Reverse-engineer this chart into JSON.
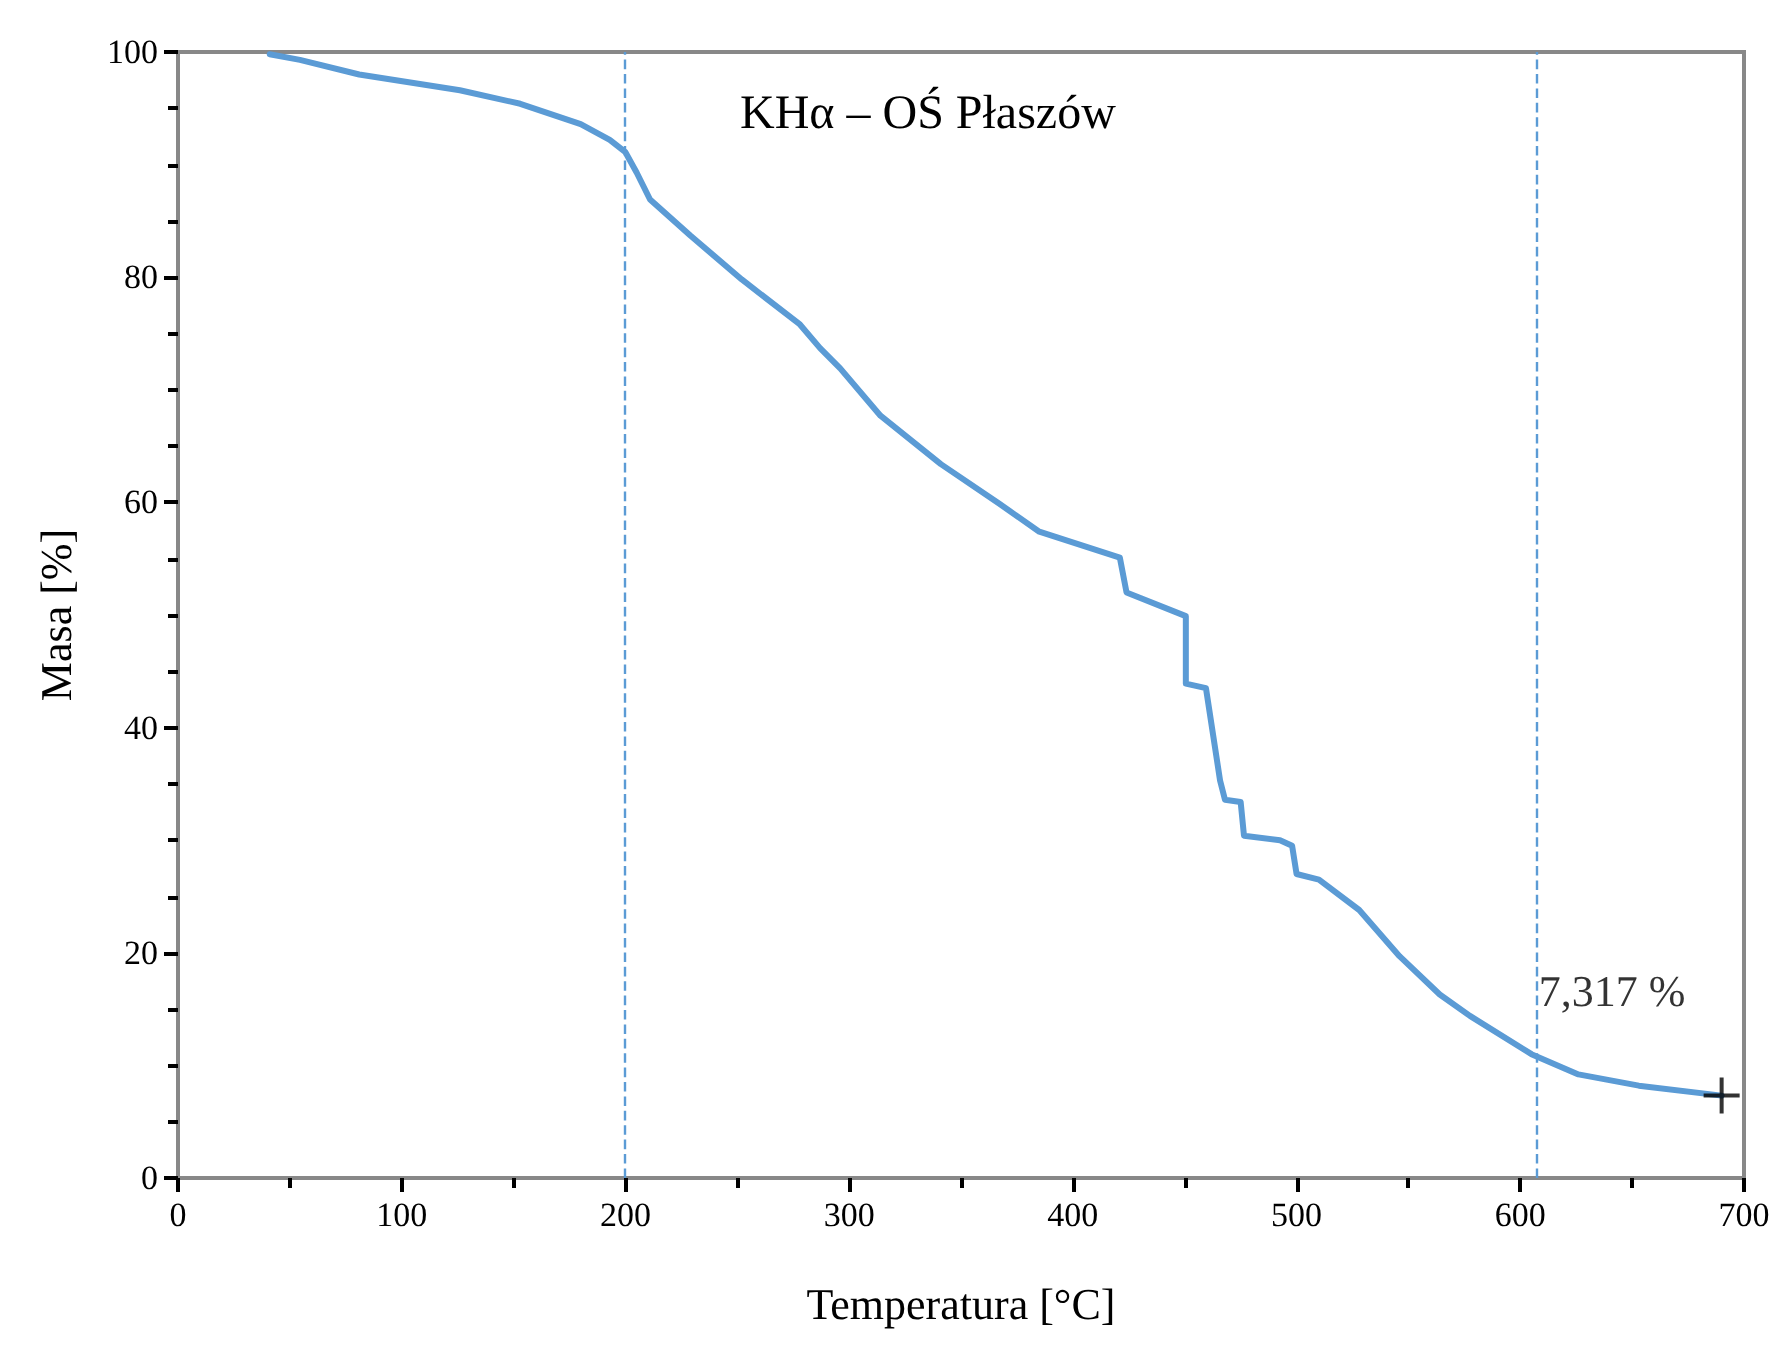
{
  "chart_data": {
    "type": "line",
    "title": "KHα – OŚ Płaszów",
    "xlabel": "Temperatura [°C]",
    "ylabel": "Masa [%]",
    "xlim": [
      0,
      700
    ],
    "xticks": [
      0,
      100,
      200,
      300,
      400,
      500,
      600,
      700
    ],
    "ylim": [
      0,
      100
    ],
    "yticks": [
      0,
      20,
      40,
      60,
      80,
      100
    ],
    "marker": "none",
    "line_style": "solid",
    "series": [
      {
        "color": "#5b9bd5",
        "x": [
          41,
          54.5,
          81,
          126,
          153,
          180,
          193,
          200,
          205,
          211,
          229,
          252,
          278,
          287,
          296,
          314,
          341,
          367,
          385,
          421,
          424,
          450.5,
          450.5,
          459.5,
          465.8,
          468,
          475,
          476.5,
          492.6,
          498,
          500,
          510,
          528,
          546,
          564,
          577.5,
          605,
          626,
          653,
          690
        ],
        "values": [
          99.8,
          99.3,
          98,
          96.6,
          95.4,
          93.6,
          92.2,
          91.1,
          89.3,
          86.9,
          83.7,
          79.8,
          75.8,
          73.7,
          71.9,
          67.7,
          63.4,
          59.9,
          57.4,
          55.1,
          52,
          49.9,
          43.9,
          43.5,
          35.3,
          33.6,
          33.4,
          30.4,
          30,
          29.5,
          27,
          26.5,
          23.8,
          19.7,
          16.3,
          14.4,
          11,
          9.2,
          8.2,
          7.317
        ]
      }
    ],
    "ref_lines": [
      {
        "axis": "x",
        "value": 200,
        "color": "#5b9bd5",
        "line_style": "dashed"
      },
      {
        "axis": "x",
        "value": 607,
        "color": "#5b9bd5",
        "line_style": "dashed"
      }
    ],
    "annotations": [
      {
        "text": "7,317 %",
        "x": 690,
        "y": 7.317
      }
    ]
  }
}
